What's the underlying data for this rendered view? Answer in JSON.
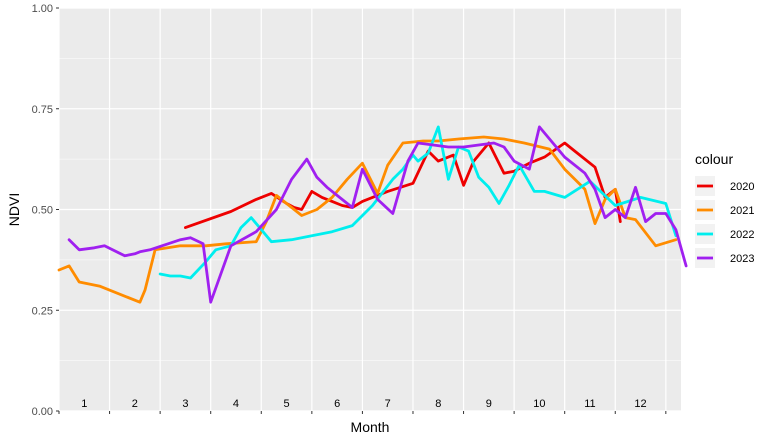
{
  "chart_data": {
    "type": "line",
    "title": "",
    "xlabel": "Month",
    "ylabel": "NDVI",
    "ylim": [
      0,
      1
    ],
    "xlim": [
      0,
      12.3
    ],
    "y_ticks": [
      "0.00",
      "0.25",
      "0.50",
      "0.75",
      "1.00"
    ],
    "y_tick_values": [
      0,
      0.25,
      0.5,
      0.75,
      1.0
    ],
    "month_labels": [
      "1",
      "2",
      "3",
      "4",
      "5",
      "6",
      "7",
      "8",
      "9",
      "10",
      "11",
      "12"
    ],
    "grid": true,
    "legend_title": "colour",
    "legend_position": "right",
    "series": [
      {
        "name": "2020",
        "color": "#EE0000",
        "x": [
          2.5,
          3.4,
          3.9,
          4.2,
          4.5,
          4.65,
          4.8,
          5.0,
          5.2,
          5.4,
          5.6,
          5.8,
          6.0,
          6.5,
          7.0,
          7.3,
          7.5,
          7.8,
          8.0,
          8.2,
          8.5,
          8.8,
          9.0,
          9.3,
          9.6,
          10.0,
          10.2,
          10.6,
          10.8,
          11.0,
          11.1
        ],
        "y": [
          0.455,
          0.495,
          0.525,
          0.54,
          0.515,
          0.505,
          0.5,
          0.545,
          0.53,
          0.52,
          0.51,
          0.505,
          0.52,
          0.545,
          0.565,
          0.645,
          0.62,
          0.635,
          0.56,
          0.62,
          0.665,
          0.59,
          0.595,
          0.615,
          0.63,
          0.665,
          0.645,
          0.605,
          0.53,
          0.55,
          0.47
        ]
      },
      {
        "name": "2021",
        "color": "#FF8C00",
        "x": [
          0.0,
          0.2,
          0.4,
          0.8,
          1.6,
          1.7,
          1.9,
          2.4,
          2.9,
          3.3,
          3.9,
          4.1,
          4.3,
          4.5,
          4.8,
          5.1,
          5.4,
          5.7,
          6.0,
          6.3,
          6.5,
          6.8,
          7.2,
          7.5,
          7.9,
          8.4,
          8.8,
          9.2,
          9.7,
          10.0,
          10.4,
          10.6,
          10.8,
          11.0,
          11.2,
          11.4,
          11.8,
          12.2
        ],
        "y": [
          0.35,
          0.36,
          0.32,
          0.31,
          0.27,
          0.3,
          0.4,
          0.41,
          0.41,
          0.415,
          0.42,
          0.47,
          0.535,
          0.515,
          0.485,
          0.5,
          0.53,
          0.575,
          0.615,
          0.54,
          0.61,
          0.665,
          0.67,
          0.67,
          0.675,
          0.68,
          0.675,
          0.665,
          0.65,
          0.6,
          0.55,
          0.465,
          0.525,
          0.55,
          0.48,
          0.475,
          0.41,
          0.425
        ]
      },
      {
        "name": "2022",
        "color": "#00EEEE",
        "x": [
          2.0,
          2.2,
          2.4,
          2.6,
          2.9,
          3.1,
          3.4,
          3.6,
          3.8,
          4.2,
          4.6,
          5.0,
          5.4,
          5.8,
          6.2,
          6.6,
          6.8,
          7.0,
          7.1,
          7.3,
          7.5,
          7.7,
          7.9,
          8.1,
          8.3,
          8.5,
          8.7,
          8.9,
          9.1,
          9.4,
          9.6,
          10.0,
          10.5,
          11.0,
          11.5,
          12.0,
          12.2
        ],
        "y": [
          0.34,
          0.335,
          0.335,
          0.33,
          0.37,
          0.4,
          0.41,
          0.455,
          0.48,
          0.42,
          0.425,
          0.435,
          0.445,
          0.46,
          0.51,
          0.575,
          0.6,
          0.635,
          0.62,
          0.64,
          0.705,
          0.575,
          0.655,
          0.645,
          0.58,
          0.555,
          0.515,
          0.56,
          0.61,
          0.545,
          0.545,
          0.53,
          0.57,
          0.51,
          0.53,
          0.515,
          0.435
        ]
      },
      {
        "name": "2023",
        "color": "#A020F0",
        "x": [
          0.2,
          0.4,
          0.7,
          0.9,
          1.3,
          1.5,
          1.6,
          1.8,
          2.4,
          2.6,
          2.85,
          3.0,
          3.4,
          3.9,
          4.3,
          4.6,
          4.9,
          5.1,
          5.3,
          5.5,
          5.8,
          6.0,
          6.3,
          6.6,
          6.9,
          7.1,
          7.4,
          7.7,
          8.0,
          8.3,
          8.6,
          8.8,
          9.0,
          9.3,
          9.5,
          10.0,
          10.4,
          10.6,
          10.8,
          11.0,
          11.2,
          11.4,
          11.6,
          11.8,
          12.0,
          12.2,
          12.4
        ],
        "y": [
          0.425,
          0.4,
          0.405,
          0.41,
          0.385,
          0.39,
          0.395,
          0.4,
          0.425,
          0.43,
          0.415,
          0.27,
          0.41,
          0.445,
          0.5,
          0.575,
          0.625,
          0.58,
          0.555,
          0.535,
          0.505,
          0.6,
          0.525,
          0.49,
          0.62,
          0.665,
          0.66,
          0.655,
          0.655,
          0.66,
          0.665,
          0.655,
          0.62,
          0.6,
          0.705,
          0.63,
          0.59,
          0.55,
          0.48,
          0.5,
          0.48,
          0.555,
          0.47,
          0.49,
          0.49,
          0.45,
          0.36
        ]
      }
    ]
  }
}
